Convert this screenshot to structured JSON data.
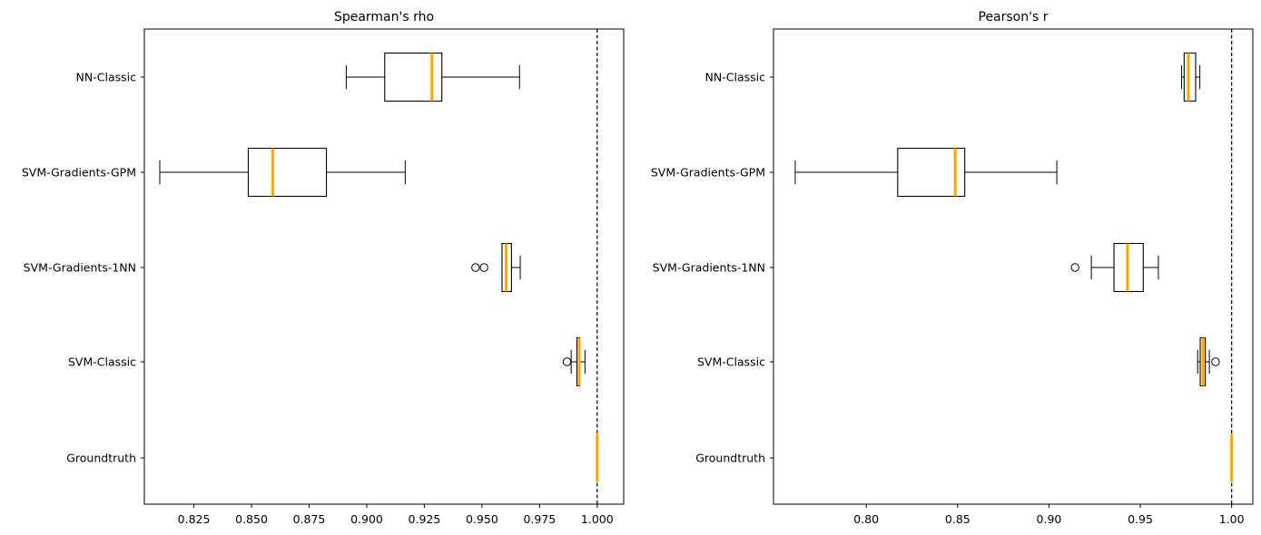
{
  "chart_data": [
    {
      "type": "boxplot",
      "orientation": "horizontal",
      "title": "Spearman's rho",
      "xlabel": "",
      "ylabel": "",
      "xlim": [
        0.8035,
        1.0115
      ],
      "xticks": [
        "0.825",
        "0.850",
        "0.875",
        "0.900",
        "0.925",
        "0.950",
        "0.975",
        "1.000"
      ],
      "reference_line": {
        "x": 1.0,
        "style": "dashed",
        "color": "#000000"
      },
      "median_color": "#ffa500",
      "categories": [
        "Groundtruth",
        "SVM-Classic",
        "SVM-Gradients-1NN",
        "SVM-Gradients-GPM",
        "NN-Classic"
      ],
      "boxes": [
        {
          "label": "Groundtruth",
          "whisker_low": 1.0,
          "q1": 1.0,
          "median": 1.0,
          "q3": 1.0,
          "whisker_high": 1.0,
          "fliers": []
        },
        {
          "label": "SVM-Classic",
          "whisker_low": 0.9887,
          "q1": 0.9912,
          "median": 0.9922,
          "q3": 0.9924,
          "whisker_high": 0.9947,
          "fliers": [
            0.9869
          ]
        },
        {
          "label": "SVM-Gradients-1NN",
          "whisker_low": 0.9587,
          "q1": 0.9587,
          "median": 0.9605,
          "q3": 0.9628,
          "whisker_high": 0.9666,
          "fliers": [
            0.9472,
            0.9509
          ]
        },
        {
          "label": "SVM-Gradients-GPM",
          "whisker_low": 0.8102,
          "q1": 0.8486,
          "median": 0.8592,
          "q3": 0.8825,
          "whisker_high": 0.9167,
          "fliers": []
        },
        {
          "label": "NN-Classic",
          "whisker_low": 0.8911,
          "q1": 0.9078,
          "median": 0.9283,
          "q3": 0.9326,
          "whisker_high": 0.9663,
          "fliers": []
        }
      ]
    },
    {
      "type": "boxplot",
      "orientation": "horizontal",
      "title": "Pearson's r",
      "xlabel": "",
      "ylabel": "",
      "xlim": [
        0.7492,
        1.0116
      ],
      "xticks": [
        "0.80",
        "0.85",
        "0.90",
        "0.95",
        "1.00"
      ],
      "reference_line": {
        "x": 1.0,
        "style": "dashed",
        "color": "#000000"
      },
      "median_color": "#ffa500",
      "categories": [
        "Groundtruth",
        "SVM-Classic",
        "SVM-Gradients-1NN",
        "SVM-Gradients-GPM",
        "NN-Classic"
      ],
      "boxes": [
        {
          "label": "Groundtruth",
          "whisker_low": 1.0,
          "q1": 1.0,
          "median": 1.0,
          "q3": 1.0,
          "whisker_high": 1.0,
          "fliers": []
        },
        {
          "label": "SVM-Classic",
          "whisker_low": 0.9814,
          "q1": 0.9828,
          "median": 0.9843,
          "q3": 0.9856,
          "whisker_high": 0.9878,
          "fliers": [
            0.9912
          ]
        },
        {
          "label": "SVM-Gradients-1NN",
          "whisker_low": 0.9232,
          "q1": 0.9356,
          "median": 0.943,
          "q3": 0.9516,
          "whisker_high": 0.9599,
          "fliers": [
            0.9143
          ]
        },
        {
          "label": "SVM-Gradients-GPM",
          "whisker_low": 0.7611,
          "q1": 0.8172,
          "median": 0.8487,
          "q3": 0.8539,
          "whisker_high": 0.9043,
          "fliers": []
        },
        {
          "label": "NN-Classic",
          "whisker_low": 0.9726,
          "q1": 0.974,
          "median": 0.9763,
          "q3": 0.9803,
          "whisker_high": 0.9826,
          "fliers": []
        }
      ]
    }
  ]
}
